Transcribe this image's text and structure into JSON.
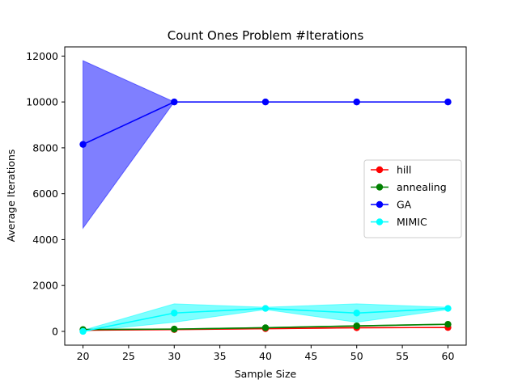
{
  "chart_data": {
    "type": "line",
    "title": "Count Ones Problem #Iterations",
    "xlabel": "Sample Size",
    "ylabel": "Average Iterations",
    "x": [
      20,
      30,
      40,
      50,
      60
    ],
    "xlim": [
      18,
      62
    ],
    "ylim": [
      -600,
      12400
    ],
    "xticks": [
      20,
      25,
      30,
      35,
      40,
      45,
      50,
      55,
      60
    ],
    "yticks": [
      0,
      2000,
      4000,
      6000,
      8000,
      10000,
      12000
    ],
    "grid": false,
    "legend_position": "center-right",
    "series": [
      {
        "name": "hill",
        "color": "#ff0000",
        "values": [
          50,
          80,
          120,
          160,
          170
        ],
        "band_lower": [
          50,
          80,
          110,
          150,
          160
        ],
        "band_upper": [
          60,
          90,
          130,
          170,
          180
        ]
      },
      {
        "name": "annealing",
        "color": "#008000",
        "values": [
          80,
          100,
          160,
          240,
          310
        ],
        "band_lower": [
          70,
          90,
          150,
          230,
          300
        ],
        "band_upper": [
          90,
          110,
          170,
          250,
          320
        ]
      },
      {
        "name": "GA",
        "color": "#0000ff",
        "values": [
          8150,
          10000,
          10000,
          10000,
          10000
        ],
        "band_lower": [
          4500,
          10000,
          10000,
          10000,
          10000
        ],
        "band_upper": [
          11800,
          10000,
          10000,
          10000,
          10000
        ]
      },
      {
        "name": "MIMIC",
        "color": "#00ffff",
        "values": [
          0,
          800,
          1000,
          800,
          1000
        ],
        "band_lower": [
          0,
          400,
          950,
          400,
          950
        ],
        "band_upper": [
          50,
          1200,
          1050,
          1200,
          1050
        ]
      }
    ]
  }
}
